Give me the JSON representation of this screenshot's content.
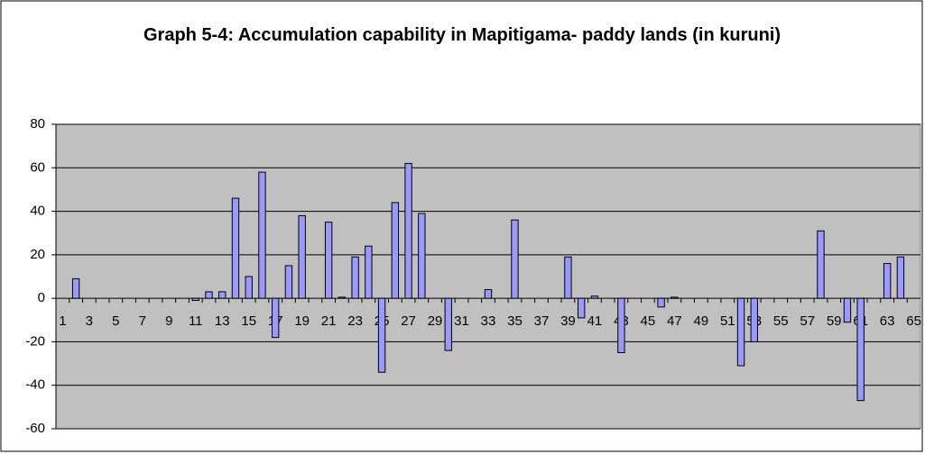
{
  "chart_data": {
    "type": "bar",
    "title": "Graph 5-4: Accumulation capability in Mapitigama- paddy lands (in kuruni)",
    "categories": [
      1,
      null,
      3,
      null,
      5,
      null,
      7,
      null,
      9,
      null,
      11,
      null,
      13,
      null,
      15,
      null,
      17,
      null,
      19,
      null,
      21,
      null,
      23,
      null,
      25,
      null,
      27,
      null,
      29,
      null,
      31,
      null,
      33,
      null,
      35,
      null,
      37,
      null,
      39,
      null,
      41,
      null,
      43,
      null,
      45,
      null,
      47,
      null,
      49,
      null,
      51,
      null,
      53,
      null,
      55,
      null,
      57,
      null,
      59,
      null,
      61,
      null,
      63,
      null,
      65
    ],
    "values": [
      0,
      9,
      0,
      0,
      0,
      0,
      0,
      0,
      0,
      0,
      -1,
      3,
      3,
      46,
      10,
      58,
      -18,
      15,
      38,
      0,
      35,
      0.5,
      19,
      24,
      -34,
      44,
      62,
      39,
      0,
      -24,
      0,
      0,
      4,
      0,
      36,
      0,
      0,
      0,
      19,
      -9,
      1,
      0,
      -25,
      0,
      0,
      -4,
      0.5,
      0,
      0,
      0,
      0,
      -31,
      -20,
      0,
      0,
      0,
      0,
      31,
      0,
      -11,
      -47,
      0,
      16,
      19,
      0
    ],
    "color": "#9999ff",
    "ylim": [
      -60,
      80
    ],
    "yticks": [
      -60,
      -40,
      -20,
      0,
      20,
      40,
      60,
      80
    ],
    "grid": true
  }
}
